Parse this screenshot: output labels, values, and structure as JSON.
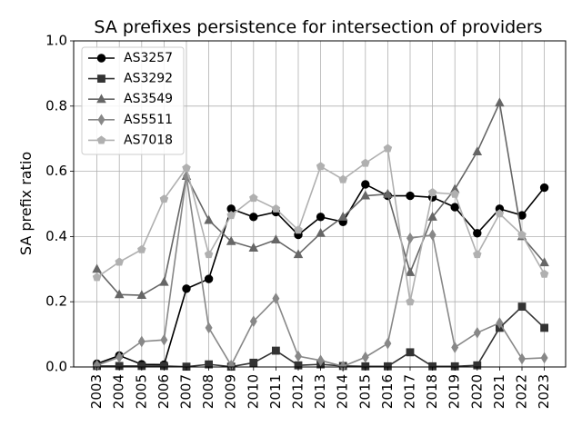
{
  "chart_data": {
    "type": "line",
    "title": "SA prefixes persistence for intersection of providers",
    "xlabel": "",
    "ylabel": "SA prefix ratio",
    "ylim": [
      0.0,
      1.0
    ],
    "yticks": [
      "0.0",
      "0.2",
      "0.4",
      "0.6",
      "0.8",
      "1.0"
    ],
    "ytick_values": [
      0.0,
      0.2,
      0.4,
      0.6,
      0.8,
      1.0
    ],
    "x": [
      "2003",
      "2004",
      "2005",
      "2006",
      "2007",
      "2008",
      "2009",
      "2010",
      "2011",
      "2012",
      "2013",
      "2014",
      "2015",
      "2016",
      "2017",
      "2018",
      "2019",
      "2020",
      "2021",
      "2022",
      "2023"
    ],
    "grid": true,
    "legend_position": "top-left",
    "series": [
      {
        "name": "AS3257",
        "color": "#000000",
        "marker": "circle",
        "values": [
          0.01,
          0.035,
          0.008,
          0.007,
          0.24,
          0.27,
          0.485,
          0.46,
          0.475,
          0.405,
          0.46,
          0.445,
          0.56,
          0.525,
          0.525,
          0.52,
          0.49,
          0.41,
          0.485,
          0.465,
          0.55
        ]
      },
      {
        "name": "AS3292",
        "color": "#333333",
        "marker": "square",
        "values": [
          0.003,
          0.003,
          0.003,
          0.003,
          0.001,
          0.008,
          0.001,
          0.013,
          0.05,
          0.005,
          0.008,
          0.003,
          0.002,
          0.002,
          0.045,
          0.002,
          0.002,
          0.005,
          0.12,
          0.185,
          0.12
        ]
      },
      {
        "name": "AS3549",
        "color": "#666666",
        "marker": "triangle",
        "values": [
          0.3,
          0.222,
          0.22,
          0.26,
          0.585,
          0.45,
          0.385,
          0.365,
          0.39,
          0.345,
          0.41,
          0.46,
          0.525,
          0.53,
          0.29,
          0.46,
          0.545,
          0.66,
          0.81,
          0.4,
          0.32
        ]
      },
      {
        "name": "AS5511",
        "color": "#888888",
        "marker": "diamond",
        "values": [
          0.005,
          0.03,
          0.078,
          0.083,
          0.585,
          0.12,
          0.005,
          0.14,
          0.21,
          0.033,
          0.02,
          0.002,
          0.03,
          0.072,
          0.395,
          0.405,
          0.06,
          0.105,
          0.135,
          0.025,
          0.028
        ]
      },
      {
        "name": "AS7018",
        "color": "#b0b0b0",
        "marker": "pentagon",
        "values": [
          0.275,
          0.322,
          0.36,
          0.515,
          0.61,
          0.345,
          0.465,
          0.518,
          0.485,
          0.42,
          0.615,
          0.575,
          0.625,
          0.67,
          0.2,
          0.535,
          0.53,
          0.345,
          0.47,
          0.405,
          0.285
        ]
      }
    ]
  }
}
